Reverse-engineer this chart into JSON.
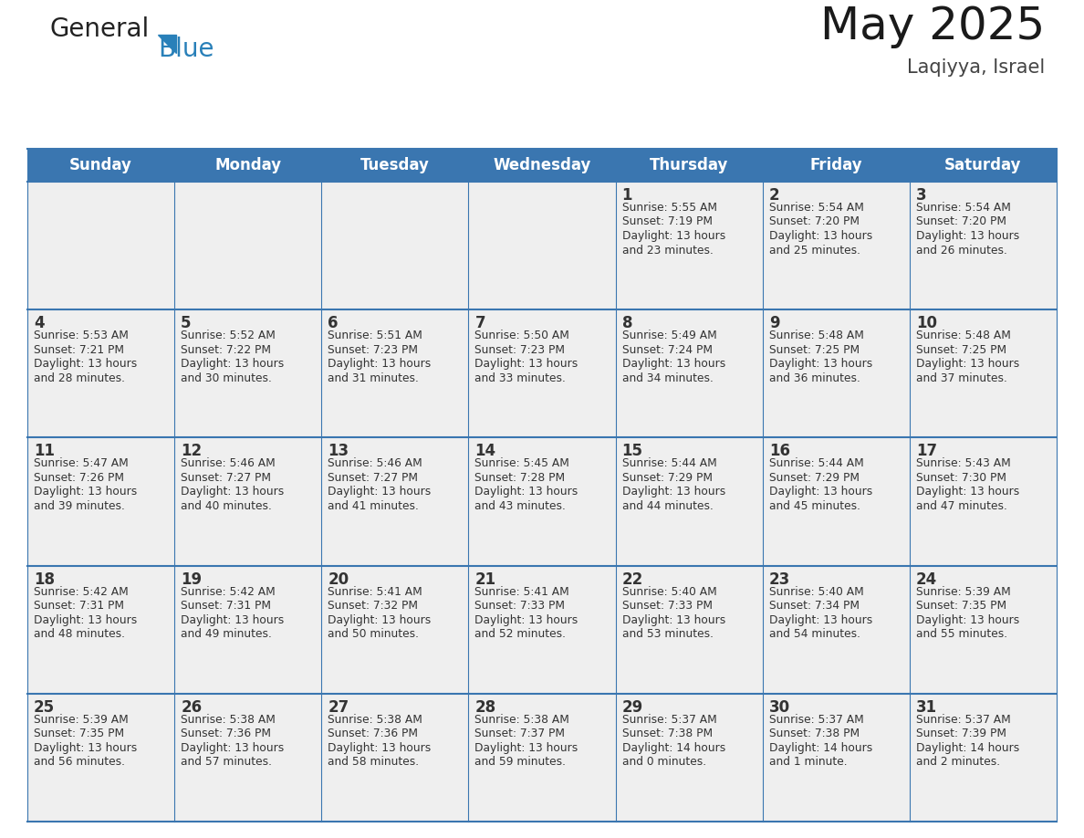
{
  "title": "May 2025",
  "subtitle": "Laqiyya, Israel",
  "header_bg": "#3a76b0",
  "header_text_color": "#ffffff",
  "cell_bg_light": "#efefef",
  "border_color": "#3a76b0",
  "day_number_color": "#333333",
  "text_color": "#333333",
  "days_of_week": [
    "Sunday",
    "Monday",
    "Tuesday",
    "Wednesday",
    "Thursday",
    "Friday",
    "Saturday"
  ],
  "calendar": [
    [
      {
        "day": "",
        "sunrise": "",
        "sunset": "",
        "daylight": ""
      },
      {
        "day": "",
        "sunrise": "",
        "sunset": "",
        "daylight": ""
      },
      {
        "day": "",
        "sunrise": "",
        "sunset": "",
        "daylight": ""
      },
      {
        "day": "",
        "sunrise": "",
        "sunset": "",
        "daylight": ""
      },
      {
        "day": "1",
        "sunrise": "5:55 AM",
        "sunset": "7:19 PM",
        "daylight": "13 hours and 23 minutes."
      },
      {
        "day": "2",
        "sunrise": "5:54 AM",
        "sunset": "7:20 PM",
        "daylight": "13 hours and 25 minutes."
      },
      {
        "day": "3",
        "sunrise": "5:54 AM",
        "sunset": "7:20 PM",
        "daylight": "13 hours and 26 minutes."
      }
    ],
    [
      {
        "day": "4",
        "sunrise": "5:53 AM",
        "sunset": "7:21 PM",
        "daylight": "13 hours and 28 minutes."
      },
      {
        "day": "5",
        "sunrise": "5:52 AM",
        "sunset": "7:22 PM",
        "daylight": "13 hours and 30 minutes."
      },
      {
        "day": "6",
        "sunrise": "5:51 AM",
        "sunset": "7:23 PM",
        "daylight": "13 hours and 31 minutes."
      },
      {
        "day": "7",
        "sunrise": "5:50 AM",
        "sunset": "7:23 PM",
        "daylight": "13 hours and 33 minutes."
      },
      {
        "day": "8",
        "sunrise": "5:49 AM",
        "sunset": "7:24 PM",
        "daylight": "13 hours and 34 minutes."
      },
      {
        "day": "9",
        "sunrise": "5:48 AM",
        "sunset": "7:25 PM",
        "daylight": "13 hours and 36 minutes."
      },
      {
        "day": "10",
        "sunrise": "5:48 AM",
        "sunset": "7:25 PM",
        "daylight": "13 hours and 37 minutes."
      }
    ],
    [
      {
        "day": "11",
        "sunrise": "5:47 AM",
        "sunset": "7:26 PM",
        "daylight": "13 hours and 39 minutes."
      },
      {
        "day": "12",
        "sunrise": "5:46 AM",
        "sunset": "7:27 PM",
        "daylight": "13 hours and 40 minutes."
      },
      {
        "day": "13",
        "sunrise": "5:46 AM",
        "sunset": "7:27 PM",
        "daylight": "13 hours and 41 minutes."
      },
      {
        "day": "14",
        "sunrise": "5:45 AM",
        "sunset": "7:28 PM",
        "daylight": "13 hours and 43 minutes."
      },
      {
        "day": "15",
        "sunrise": "5:44 AM",
        "sunset": "7:29 PM",
        "daylight": "13 hours and 44 minutes."
      },
      {
        "day": "16",
        "sunrise": "5:44 AM",
        "sunset": "7:29 PM",
        "daylight": "13 hours and 45 minutes."
      },
      {
        "day": "17",
        "sunrise": "5:43 AM",
        "sunset": "7:30 PM",
        "daylight": "13 hours and 47 minutes."
      }
    ],
    [
      {
        "day": "18",
        "sunrise": "5:42 AM",
        "sunset": "7:31 PM",
        "daylight": "13 hours and 48 minutes."
      },
      {
        "day": "19",
        "sunrise": "5:42 AM",
        "sunset": "7:31 PM",
        "daylight": "13 hours and 49 minutes."
      },
      {
        "day": "20",
        "sunrise": "5:41 AM",
        "sunset": "7:32 PM",
        "daylight": "13 hours and 50 minutes."
      },
      {
        "day": "21",
        "sunrise": "5:41 AM",
        "sunset": "7:33 PM",
        "daylight": "13 hours and 52 minutes."
      },
      {
        "day": "22",
        "sunrise": "5:40 AM",
        "sunset": "7:33 PM",
        "daylight": "13 hours and 53 minutes."
      },
      {
        "day": "23",
        "sunrise": "5:40 AM",
        "sunset": "7:34 PM",
        "daylight": "13 hours and 54 minutes."
      },
      {
        "day": "24",
        "sunrise": "5:39 AM",
        "sunset": "7:35 PM",
        "daylight": "13 hours and 55 minutes."
      }
    ],
    [
      {
        "day": "25",
        "sunrise": "5:39 AM",
        "sunset": "7:35 PM",
        "daylight": "13 hours and 56 minutes."
      },
      {
        "day": "26",
        "sunrise": "5:38 AM",
        "sunset": "7:36 PM",
        "daylight": "13 hours and 57 minutes."
      },
      {
        "day": "27",
        "sunrise": "5:38 AM",
        "sunset": "7:36 PM",
        "daylight": "13 hours and 58 minutes."
      },
      {
        "day": "28",
        "sunrise": "5:38 AM",
        "sunset": "7:37 PM",
        "daylight": "13 hours and 59 minutes."
      },
      {
        "day": "29",
        "sunrise": "5:37 AM",
        "sunset": "7:38 PM",
        "daylight": "14 hours and 0 minutes."
      },
      {
        "day": "30",
        "sunrise": "5:37 AM",
        "sunset": "7:38 PM",
        "daylight": "14 hours and 1 minute."
      },
      {
        "day": "31",
        "sunrise": "5:37 AM",
        "sunset": "7:39 PM",
        "daylight": "14 hours and 2 minutes."
      }
    ]
  ],
  "logo_color1": "#222222",
  "logo_color2": "#2980b9",
  "logo_triangle_color": "#2980b9"
}
